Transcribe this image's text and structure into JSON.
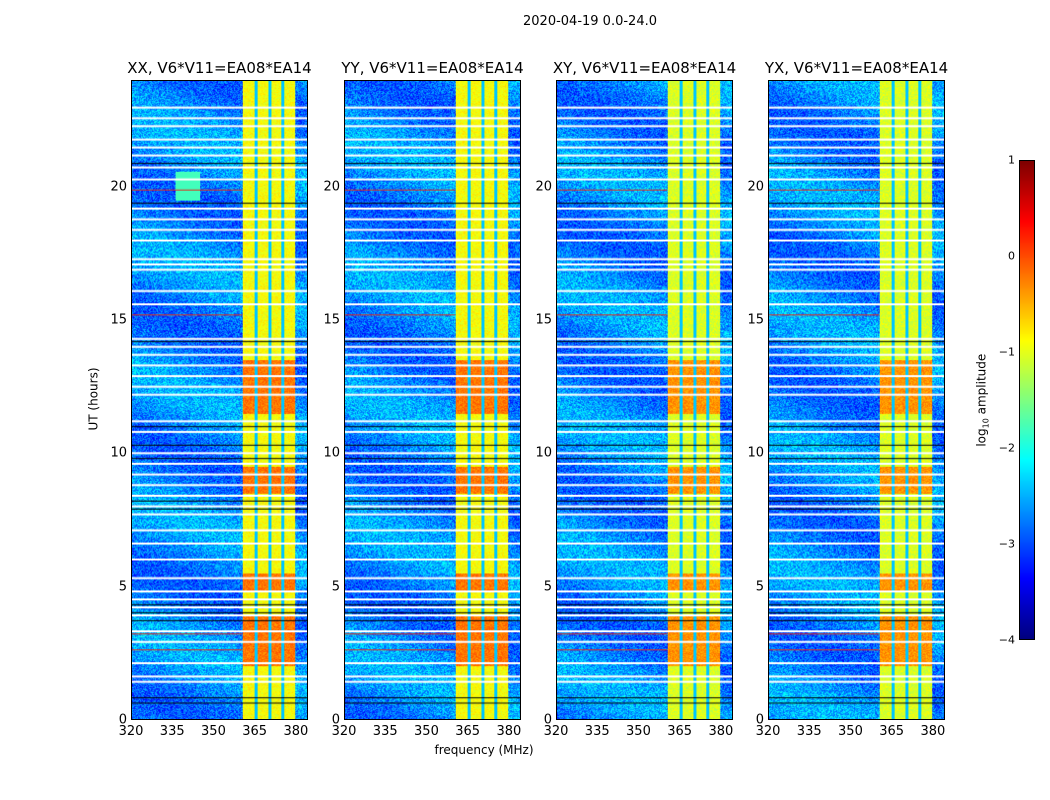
{
  "suptitle": "2020-04-19 0.0-24.0",
  "chart_data": {
    "type": "heatmap",
    "panels": [
      {
        "title": "XX, V6*V11=EA08*EA14"
      },
      {
        "title": "YY, V6*V11=EA08*EA14"
      },
      {
        "title": "XY, V6*V11=EA08*EA14"
      },
      {
        "title": "YX, V6*V11=EA08*EA14"
      }
    ],
    "xlabel": "frequency (MHz)",
    "ylabel": "UT (hours)",
    "xlim": [
      320,
      384.4
    ],
    "ylim": [
      0,
      24
    ],
    "xticks": [
      "320",
      "335",
      "350",
      "365",
      "380"
    ],
    "xtick_values": [
      320,
      335,
      350,
      365,
      380
    ],
    "yticks": [
      "0",
      "5",
      "10",
      "15",
      "20"
    ],
    "ytick_values": [
      0,
      5,
      10,
      15,
      20
    ],
    "colorbar": {
      "label": "log10 amplitude",
      "label_main": "log",
      "label_sub": "10",
      "label_rest": " amplitude",
      "colormap": "jet",
      "range": [
        -4,
        1
      ],
      "ticks": [
        "1",
        "0",
        "−1",
        "−2",
        "−3",
        "−4"
      ],
      "tick_values": [
        1,
        0,
        -1,
        -2,
        -3,
        -4
      ]
    },
    "background_level": -2.7,
    "band": {
      "freq_range": [
        360.5,
        380
      ],
      "level": -0.9,
      "gaps_mhz": [
        365.6,
        370.6,
        375.4
      ]
    },
    "strong_hours": [
      [
        2.0,
        3.9
      ],
      [
        11.5,
        13.5
      ],
      [
        8.5,
        9.5
      ],
      [
        4.8,
        5.5
      ]
    ],
    "flagged_rows_hours": [
      23.0,
      22.6,
      22.3,
      21.8,
      21.5,
      21.2,
      20.75,
      20.3,
      19.2,
      18.8,
      18.4,
      18.0,
      17.3,
      17.1,
      16.9,
      16.1,
      15.6,
      14.3,
      14.0,
      13.7,
      13.3,
      12.9,
      12.5,
      12.2,
      11.2,
      10.8,
      10.0,
      9.6,
      9.2,
      8.8,
      8.4,
      8.0,
      7.7,
      7.1,
      6.6,
      6.0,
      5.3,
      4.8,
      4.5,
      4.2,
      3.9,
      3.3,
      2.9,
      2.1,
      1.6,
      1.4
    ],
    "dark_rows_hours": [
      20.9,
      19.4,
      14.2,
      11.0,
      10.3,
      9.8,
      8.2,
      7.9,
      4.3,
      4.0,
      3.7,
      0.8,
      0.6
    ],
    "rfi_rows_hours": [
      19.9,
      15.2,
      3.2,
      2.6
    ]
  }
}
